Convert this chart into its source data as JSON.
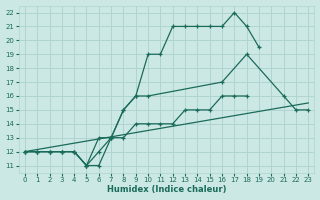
{
  "xlabel": "Humidex (Indice chaleur)",
  "bg_color": "#cce8e4",
  "grid_color": "#b0d4d0",
  "line_color": "#1a6b5a",
  "xlim": [
    -0.5,
    23.5
  ],
  "ylim": [
    10.5,
    22.5
  ],
  "xticks": [
    0,
    1,
    2,
    3,
    4,
    5,
    6,
    7,
    8,
    9,
    10,
    11,
    12,
    13,
    14,
    15,
    16,
    17,
    18,
    19,
    20,
    21,
    22,
    23
  ],
  "yticks": [
    11,
    12,
    13,
    14,
    15,
    16,
    17,
    18,
    19,
    20,
    21,
    22
  ],
  "line1_x": [
    0,
    1,
    2,
    3,
    4,
    5,
    6,
    7,
    8,
    9,
    10,
    11,
    12,
    13,
    14,
    15,
    16,
    17,
    18,
    19
  ],
  "line1_y": [
    12,
    12,
    12,
    12,
    12,
    11,
    11,
    13,
    15,
    16,
    19,
    19,
    21,
    21,
    21,
    21,
    21,
    22,
    21,
    19.5
  ],
  "line2_x": [
    0,
    1,
    2,
    3,
    4,
    5,
    6,
    7,
    8,
    9,
    10,
    16,
    18,
    21,
    22,
    23
  ],
  "line2_y": [
    12,
    12,
    12,
    12,
    12,
    11,
    13,
    13,
    15,
    16,
    16,
    17,
    19,
    16,
    15,
    15
  ],
  "line3_x": [
    0,
    1,
    2,
    3,
    4,
    5,
    6,
    7,
    8,
    9,
    10,
    11,
    12,
    13,
    14,
    15,
    16,
    17,
    18
  ],
  "line3_y": [
    12,
    12,
    12,
    12,
    12,
    11,
    12,
    13,
    13,
    14,
    14,
    14,
    14,
    15,
    15,
    15,
    16,
    16,
    16
  ],
  "line4_x": [
    0,
    23
  ],
  "line4_y": [
    12,
    15.5
  ]
}
